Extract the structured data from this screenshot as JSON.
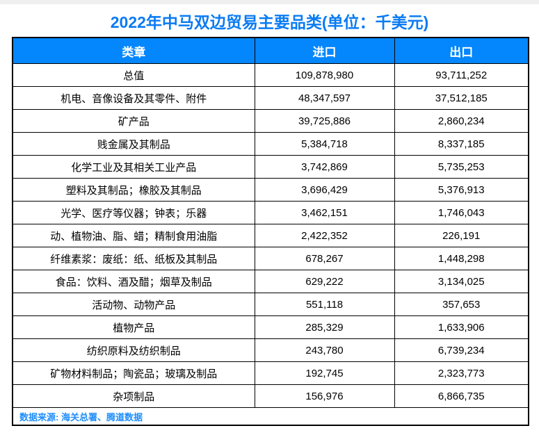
{
  "title": "2022年中马双边贸易主要品类(单位：千美元)",
  "table": {
    "headers": [
      "类章",
      "进口",
      "出口"
    ],
    "rows": [
      [
        "总值",
        "109,878,980",
        "93,711,252"
      ],
      [
        "机电、音像设备及其零件、附件",
        "48,347,597",
        "37,512,185"
      ],
      [
        "矿产品",
        "39,725,886",
        "2,860,234"
      ],
      [
        "贱金属及其制品",
        "5,384,718",
        "8,337,185"
      ],
      [
        "化学工业及其相关工业产品",
        "3,742,869",
        "5,735,253"
      ],
      [
        "塑料及其制品；橡胶及其制品",
        "3,696,429",
        "5,376,913"
      ],
      [
        "光学、医疗等仪器；钟表；乐器",
        "3,462,151",
        "1,746,043"
      ],
      [
        "动、植物油、脂、蜡；精制食用油脂",
        "2,422,352",
        "226,191"
      ],
      [
        "纤维素浆：废纸：纸、纸板及其制品",
        "678,267",
        "1,448,298"
      ],
      [
        "食品：饮料、酒及醋；烟草及制品",
        "629,222",
        "3,134,025"
      ],
      [
        "活动物、动物产品",
        "551,118",
        "357,653"
      ],
      [
        "植物产品",
        "285,329",
        "1,633,906"
      ],
      [
        "纺织原料及纺织制品",
        "243,780",
        "6,739,234"
      ],
      [
        "矿物材料制品；陶瓷品；玻璃及制品",
        "192,745",
        "2,323,773"
      ],
      [
        "杂项制品",
        "156,976",
        "6,866,735"
      ]
    ],
    "source_note": "数据来源: 海关总署、腾道数据"
  },
  "colors": {
    "title_text": "#0b7bf3",
    "header_background": "#0486fd",
    "header_text": "#ffffff",
    "source_text": "#1e8efb",
    "border": "#000000"
  },
  "chart_data": {
    "type": "table",
    "title": "2022年中马双边贸易主要品类(单位：千美元)",
    "columns": [
      "类章",
      "进口",
      "出口"
    ],
    "categories": [
      "总值",
      "机电、音像设备及其零件、附件",
      "矿产品",
      "贱金属及其制品",
      "化学工业及其相关工业产品",
      "塑料及其制品；橡胶及其制品",
      "光学、医疗等仪器；钟表；乐器",
      "动、植物油、脂、蜡；精制食用油脂",
      "纤维素浆：废纸：纸、纸板及其制品",
      "食品：饮料、酒及醋；烟草及制品",
      "活动物、动物产品",
      "植物产品",
      "纺织原料及纺织制品",
      "矿物材料制品；陶瓷品；玻璃及制品",
      "杂项制品"
    ],
    "series": [
      {
        "name": "进口",
        "values": [
          109878980,
          48347597,
          39725886,
          5384718,
          3742869,
          3696429,
          3462151,
          2422352,
          678267,
          629222,
          551118,
          285329,
          243780,
          192745,
          156976
        ]
      },
      {
        "name": "出口",
        "values": [
          93711252,
          37512185,
          2860234,
          8337185,
          5735253,
          5376913,
          1746043,
          226191,
          1448298,
          3134025,
          357653,
          1633906,
          6739234,
          2323773,
          6866735
        ]
      }
    ],
    "unit": "千美元",
    "source_note": "数据来源: 海关总署、腾道数据"
  }
}
